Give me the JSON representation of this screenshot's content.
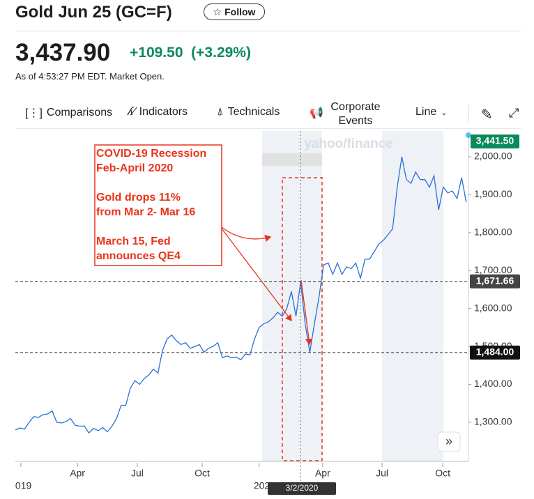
{
  "header": {
    "title": "Gold Jun 25 (GC=F)",
    "follow": "Follow",
    "price": "3,437.90",
    "change": "+109.50",
    "change_pct": "(+3.29%)",
    "as_of": "As of 4:53:27 PM EDT. Market Open."
  },
  "toolbar": {
    "comparisons": "Comparisons",
    "indicators": "Indicators",
    "technicals": "Technicals",
    "corporate_events": "Corporate Events",
    "chart_type": "Line"
  },
  "chart_data": {
    "type": "line",
    "watermark": "yahoo/finance",
    "color": "#2a6fd6",
    "values": [
      1280,
      1285,
      1282,
      1300,
      1315,
      1313,
      1320,
      1322,
      1330,
      1300,
      1298,
      1302,
      1310,
      1292,
      1290,
      1290,
      1272,
      1284,
      1278,
      1286,
      1275,
      1290,
      1310,
      1345,
      1345,
      1390,
      1410,
      1400,
      1415,
      1425,
      1440,
      1430,
      1490,
      1520,
      1530,
      1515,
      1505,
      1510,
      1495,
      1500,
      1505,
      1485,
      1495,
      1500,
      1510,
      1470,
      1475,
      1470,
      1472,
      1465,
      1480,
      1478,
      1520,
      1550,
      1560,
      1565,
      1575,
      1590,
      1580,
      1600,
      1645,
      1580,
      1670,
      1560,
      1484,
      1560,
      1630,
      1715,
      1720,
      1690,
      1720,
      1690,
      1710,
      1705,
      1720,
      1680,
      1730,
      1730,
      1750,
      1770,
      1780,
      1795,
      1810,
      1920,
      2000,
      1940,
      1930,
      1960,
      1940,
      1940,
      1920,
      1950,
      1860,
      1920,
      1905,
      1910,
      1890,
      1945,
      1880
    ],
    "ylim": [
      1197,
      2068
    ],
    "yticks": [
      {
        "value": 1300,
        "label": "1,300.00"
      },
      {
        "value": 1400,
        "label": "1,400.00"
      },
      {
        "value": 1500,
        "label": "1,500.00"
      },
      {
        "value": 1600,
        "label": "1,600.00"
      },
      {
        "value": 1700,
        "label": "1,700.00"
      },
      {
        "value": 1800,
        "label": "1,800.00"
      },
      {
        "value": 1900,
        "label": "1,900.00"
      },
      {
        "value": 2000,
        "label": "2,000.00"
      }
    ],
    "xticks": [
      {
        "value": 1.2,
        "label": "019"
      },
      {
        "value": 13.5,
        "label": "Apr"
      },
      {
        "value": 26.5,
        "label": "Jul"
      },
      {
        "value": 40.6,
        "label": "Oct"
      },
      {
        "value": 53,
        "label": "202"
      },
      {
        "value": 66.8,
        "label": "Apr"
      },
      {
        "value": 79.7,
        "label": "Jul"
      },
      {
        "value": 92.9,
        "label": "Oct"
      }
    ],
    "last_label": "3,441.50",
    "reference_lines": [
      {
        "value": 1671.66,
        "label": "1,671.66"
      },
      {
        "value": 1484,
        "label": "1,484.00"
      }
    ],
    "crosshair_label": "3/2/2020",
    "annotation": [
      [
        "COVID-19 Recession",
        "Feb-April 2020"
      ],
      [
        "Gold drops 11%",
        "from Mar 2- Mar 16"
      ],
      [
        "March 15, Fed",
        "announces QE4"
      ]
    ]
  }
}
